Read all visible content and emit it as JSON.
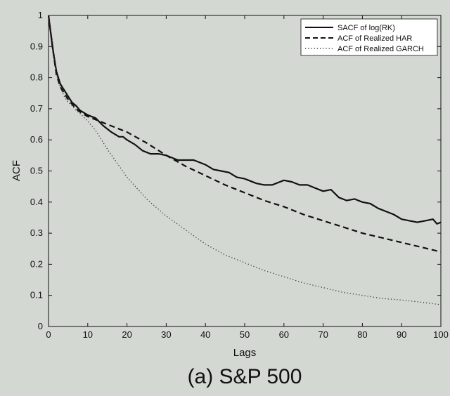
{
  "chart_data": {
    "type": "line",
    "caption": "(a) S&P 500",
    "title": "",
    "xlabel": "Lags",
    "ylabel": "ACF",
    "xlim": [
      0,
      100
    ],
    "ylim": [
      0,
      1
    ],
    "xticks": [
      0,
      10,
      20,
      30,
      40,
      50,
      60,
      70,
      80,
      90,
      100
    ],
    "xtick_labels": [
      "0",
      "10",
      "20",
      "30",
      "40",
      "50",
      "60",
      "70",
      "80",
      "90",
      "100"
    ],
    "yticks": [
      0,
      0.1,
      0.2,
      0.3,
      0.4,
      0.5,
      0.6,
      0.7,
      0.8,
      0.9,
      1
    ],
    "ytick_labels": [
      "0",
      "0.1",
      "0.2",
      "0.3",
      "0.4",
      "0.5",
      "0.6",
      "0.7",
      "0.8",
      "0.9",
      "1"
    ],
    "grid": false,
    "legend_position": "top-right",
    "series": [
      {
        "name": "SACF of log(RK)",
        "style": "solid",
        "color": "#111111",
        "x": [
          0,
          1,
          2,
          3,
          4,
          5,
          6,
          7,
          8,
          10,
          12,
          14,
          16,
          18,
          19,
          20,
          22,
          24,
          26,
          28,
          30,
          31,
          33,
          35,
          37,
          39,
          40,
          42,
          44,
          46,
          48,
          50,
          51,
          53,
          55,
          57,
          58,
          59,
          60,
          62,
          64,
          66,
          68,
          70,
          72,
          74,
          76,
          78,
          80,
          82,
          84,
          86,
          88,
          90,
          92,
          94,
          96,
          98,
          99,
          100
        ],
        "y": [
          1.0,
          0.9,
          0.82,
          0.78,
          0.76,
          0.74,
          0.72,
          0.71,
          0.695,
          0.68,
          0.67,
          0.645,
          0.625,
          0.61,
          0.61,
          0.6,
          0.585,
          0.565,
          0.555,
          0.555,
          0.55,
          0.545,
          0.535,
          0.535,
          0.535,
          0.525,
          0.52,
          0.505,
          0.5,
          0.495,
          0.48,
          0.475,
          0.47,
          0.46,
          0.455,
          0.455,
          0.46,
          0.465,
          0.47,
          0.465,
          0.455,
          0.455,
          0.445,
          0.435,
          0.44,
          0.415,
          0.405,
          0.41,
          0.4,
          0.395,
          0.38,
          0.37,
          0.36,
          0.345,
          0.34,
          0.335,
          0.34,
          0.345,
          0.33,
          0.335
        ]
      },
      {
        "name": "ACF of Realized HAR",
        "style": "dashed",
        "color": "#111111",
        "x": [
          0,
          1,
          2,
          3,
          4,
          5,
          6,
          7,
          8,
          10,
          12,
          15,
          20,
          25,
          30,
          35,
          40,
          45,
          50,
          55,
          60,
          65,
          70,
          75,
          80,
          85,
          90,
          95,
          100
        ],
        "y": [
          1.0,
          0.9,
          0.81,
          0.77,
          0.75,
          0.73,
          0.715,
          0.7,
          0.69,
          0.675,
          0.665,
          0.65,
          0.625,
          0.59,
          0.55,
          0.515,
          0.485,
          0.455,
          0.43,
          0.405,
          0.385,
          0.36,
          0.34,
          0.32,
          0.3,
          0.285,
          0.27,
          0.255,
          0.24
        ]
      },
      {
        "name": "ACF of Realized GARCH",
        "style": "dotted",
        "color": "#333333",
        "x": [
          0,
          1,
          2,
          3,
          4,
          5,
          6,
          7,
          8,
          10,
          12,
          15,
          20,
          25,
          30,
          35,
          40,
          45,
          50,
          55,
          60,
          65,
          70,
          75,
          80,
          85,
          90,
          95,
          100
        ],
        "y": [
          1.0,
          0.92,
          0.81,
          0.77,
          0.74,
          0.72,
          0.71,
          0.695,
          0.685,
          0.66,
          0.63,
          0.57,
          0.48,
          0.41,
          0.355,
          0.31,
          0.265,
          0.23,
          0.205,
          0.18,
          0.16,
          0.14,
          0.125,
          0.11,
          0.1,
          0.09,
          0.085,
          0.078,
          0.07
        ]
      }
    ]
  }
}
